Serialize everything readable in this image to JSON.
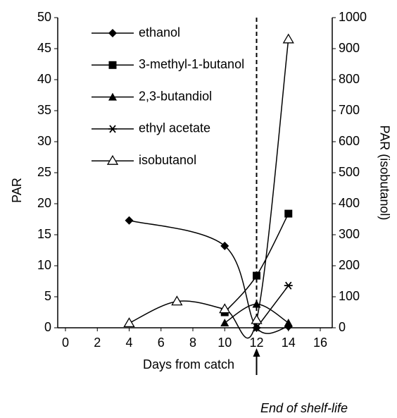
{
  "chart_data": {
    "type": "line",
    "x_label": "Days from catch",
    "y_label": "PAR",
    "y2_label": "PAR (isobutanol)",
    "annotation": {
      "text": "End of shelf-life",
      "x": 12
    },
    "xlim": [
      0,
      16
    ],
    "xticks": [
      0,
      2,
      4,
      6,
      8,
      10,
      12,
      14,
      16
    ],
    "ylim": [
      0,
      50
    ],
    "yticks": [
      0,
      5,
      10,
      15,
      20,
      25,
      30,
      35,
      40,
      45,
      50
    ],
    "y2lim": [
      0,
      1000
    ],
    "y2ticks": [
      0,
      100,
      200,
      300,
      400,
      500,
      600,
      700,
      800,
      900,
      1000
    ],
    "legend": "upper left",
    "series": [
      {
        "name": "ethanol",
        "color": "#000000",
        "marker": "diamond",
        "x": [
          4,
          10,
          12,
          14
        ],
        "values": [
          17.3,
          13.2,
          0,
          0.2
        ]
      },
      {
        "name": "3-methyl-1-butanol",
        "color": "#000000",
        "marker": "square",
        "x": [
          10,
          12,
          14
        ],
        "values": [
          2.5,
          8.4,
          18.4
        ]
      },
      {
        "name": "2,3-butandiol",
        "color": "#000000",
        "marker": "triangle",
        "x": [
          10,
          12,
          14
        ],
        "values": [
          0.8,
          3.8,
          0.8
        ]
      },
      {
        "name": "ethyl acetate",
        "color": "#000000",
        "marker": "star",
        "x": [
          12,
          14
        ],
        "values": [
          0,
          6.8
        ]
      },
      {
        "name": "isobutanol",
        "color": "#000000",
        "marker": "open-triangle",
        "axis": "y2",
        "x": [
          4,
          7,
          10,
          12,
          14
        ],
        "values": [
          15,
          85,
          60,
          25,
          930
        ]
      }
    ]
  }
}
